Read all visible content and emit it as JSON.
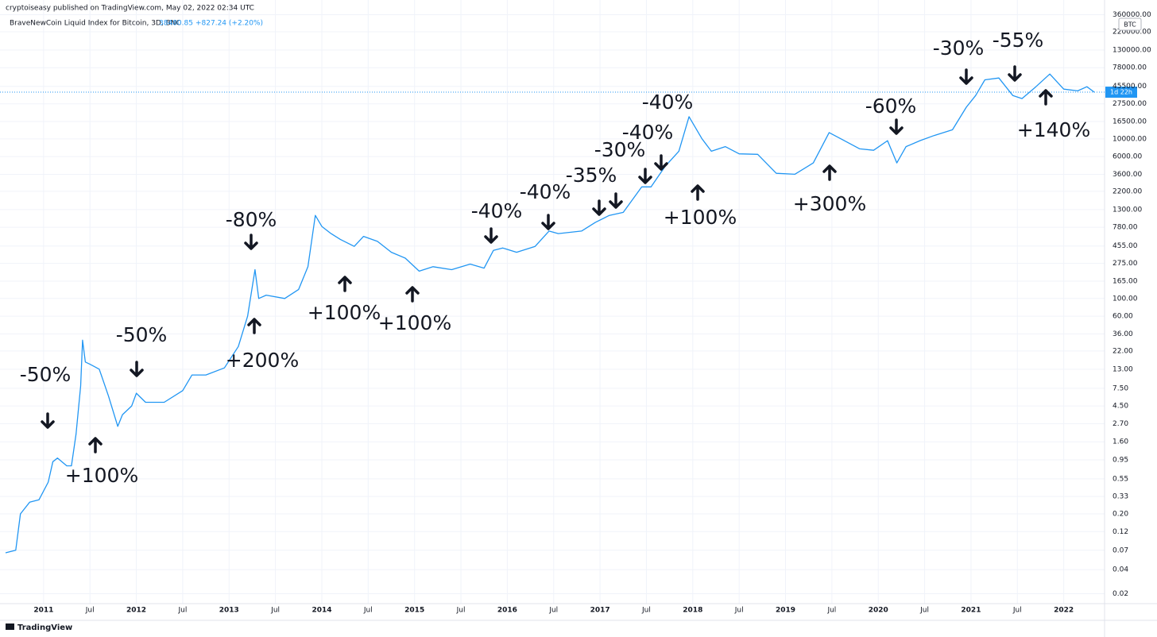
{
  "header": {
    "published": "cryptoiseasy published on TradingView.com, May 02, 2022 02:34 UTC",
    "brand": "TradingView"
  },
  "chart_data": {
    "type": "line",
    "title": "BraveNewCoin Liquid Index for Bitcoin, 3D, BNC",
    "last_price": "38480.85",
    "change": "+827.24 (+2.20%)",
    "currency": "BTC",
    "countdown": "1d 22h",
    "color": "#2196f3",
    "log_scale": true,
    "grid": true,
    "x": [
      2010.59,
      2010.7,
      2010.75,
      2010.85,
      2010.95,
      2011.05,
      2011.1,
      2011.15,
      2011.25,
      2011.3,
      2011.35,
      2011.4,
      2011.42,
      2011.45,
      2011.5,
      2011.6,
      2011.7,
      2011.8,
      2011.85,
      2011.95,
      2012.0,
      2012.1,
      2012.3,
      2012.5,
      2012.6,
      2012.75,
      2012.95,
      2013.1,
      2013.2,
      2013.28,
      2013.32,
      2013.4,
      2013.6,
      2013.75,
      2013.85,
      2013.93,
      2014.0,
      2014.1,
      2014.2,
      2014.35,
      2014.45,
      2014.6,
      2014.75,
      2014.9,
      2015.05,
      2015.2,
      2015.4,
      2015.6,
      2015.75,
      2015.85,
      2015.95,
      2016.1,
      2016.3,
      2016.45,
      2016.55,
      2016.8,
      2016.95,
      2017.1,
      2017.25,
      2017.45,
      2017.55,
      2017.7,
      2017.85,
      2017.96,
      2018.1,
      2018.2,
      2018.35,
      2018.5,
      2018.7,
      2018.9,
      2019.1,
      2019.3,
      2019.47,
      2019.6,
      2019.8,
      2019.95,
      2020.1,
      2020.2,
      2020.3,
      2020.45,
      2020.6,
      2020.8,
      2020.95,
      2021.05,
      2021.15,
      2021.3,
      2021.45,
      2021.55,
      2021.7,
      2021.85,
      2022.0,
      2022.15,
      2022.25,
      2022.33
    ],
    "values": [
      0.065,
      0.07,
      0.2,
      0.28,
      0.3,
      0.5,
      0.9,
      1.0,
      0.8,
      0.8,
      2.0,
      8,
      30,
      16,
      15,
      13,
      6,
      2.5,
      3.5,
      4.5,
      6.5,
      5,
      5,
      7,
      11,
      11,
      13.5,
      25,
      60,
      230,
      100,
      110,
      100,
      130,
      250,
      1100,
      800,
      650,
      550,
      450,
      600,
      520,
      380,
      320,
      220,
      250,
      230,
      270,
      240,
      400,
      430,
      380,
      450,
      700,
      650,
      700,
      900,
      1100,
      1200,
      2500,
      2500,
      4500,
      7000,
      19000,
      10000,
      7000,
      8000,
      6500,
      6400,
      3700,
      3600,
      5000,
      12000,
      10000,
      7500,
      7200,
      9500,
      5000,
      8000,
      9500,
      11000,
      13000,
      25000,
      35000,
      55000,
      58000,
      35000,
      32000,
      45000,
      65000,
      42000,
      40000,
      45000,
      38480.85
    ],
    "xlim": [
      2010.53,
      2022.44
    ],
    "xticks": [
      {
        "value": 2011,
        "label": "2011"
      },
      {
        "value": 2011.5,
        "label": "Jul"
      },
      {
        "value": 2012,
        "label": "2012"
      },
      {
        "value": 2012.5,
        "label": "Jul"
      },
      {
        "value": 2013,
        "label": "2013"
      },
      {
        "value": 2013.5,
        "label": "Jul"
      },
      {
        "value": 2014,
        "label": "2014"
      },
      {
        "value": 2014.5,
        "label": "Jul"
      },
      {
        "value": 2015,
        "label": "2015"
      },
      {
        "value": 2015.5,
        "label": "Jul"
      },
      {
        "value": 2016,
        "label": "2016"
      },
      {
        "value": 2016.5,
        "label": "Jul"
      },
      {
        "value": 2017,
        "label": "2017"
      },
      {
        "value": 2017.5,
        "label": "Jul"
      },
      {
        "value": 2018,
        "label": "2018"
      },
      {
        "value": 2018.5,
        "label": "Jul"
      },
      {
        "value": 2019,
        "label": "2019"
      },
      {
        "value": 2019.5,
        "label": "Jul"
      },
      {
        "value": 2020,
        "label": "2020"
      },
      {
        "value": 2020.5,
        "label": "Jul"
      },
      {
        "value": 2021,
        "label": "2021"
      },
      {
        "value": 2021.5,
        "label": "Jul"
      },
      {
        "value": 2022,
        "label": "2022"
      }
    ],
    "ylim": [
      0.015,
      550000
    ],
    "yticks": [
      {
        "value": 360000,
        "label": "360000.00"
      },
      {
        "value": 220000,
        "label": "220000.00"
      },
      {
        "value": 130000,
        "label": "130000.00"
      },
      {
        "value": 78000,
        "label": "78000.00"
      },
      {
        "value": 45500,
        "label": "45500.00"
      },
      {
        "value": 27500,
        "label": "27500.00"
      },
      {
        "value": 16500,
        "label": "16500.00"
      },
      {
        "value": 10000,
        "label": "10000.00"
      },
      {
        "value": 6000,
        "label": "6000.00"
      },
      {
        "value": 3600,
        "label": "3600.00"
      },
      {
        "value": 2200,
        "label": "2200.00"
      },
      {
        "value": 1300,
        "label": "1300.00"
      },
      {
        "value": 780,
        "label": "780.00"
      },
      {
        "value": 455,
        "label": "455.00"
      },
      {
        "value": 275,
        "label": "275.00"
      },
      {
        "value": 165,
        "label": "165.00"
      },
      {
        "value": 100,
        "label": "100.00"
      },
      {
        "value": 60,
        "label": "60.00"
      },
      {
        "value": 36,
        "label": "36.00"
      },
      {
        "value": 22,
        "label": "22.00"
      },
      {
        "value": 13,
        "label": "13.00"
      },
      {
        "value": 7.5,
        "label": "7.50"
      },
      {
        "value": 4.5,
        "label": "4.50"
      },
      {
        "value": 2.7,
        "label": "2.70"
      },
      {
        "value": 1.6,
        "label": "1.60"
      },
      {
        "value": 0.95,
        "label": "0.95"
      },
      {
        "value": 0.55,
        "label": "0.55"
      },
      {
        "value": 0.33,
        "label": "0.33"
      },
      {
        "value": 0.2,
        "label": "0.20"
      },
      {
        "value": 0.12,
        "label": "0.12"
      },
      {
        "value": 0.07,
        "label": "0.07"
      },
      {
        "value": 0.04,
        "label": "0.04"
      },
      {
        "value": 0.02,
        "label": "0.02"
      }
    ],
    "annotations": [
      "-50%",
      "+100%",
      "-50%",
      "+200%",
      "-80%",
      "+100%",
      "+100%",
      "-40%",
      "-40%",
      "-35%",
      "-30%",
      "-40%",
      "-40%",
      "+100%",
      "+300%",
      "-60%",
      "-30%",
      "-55%",
      "+140%"
    ]
  }
}
